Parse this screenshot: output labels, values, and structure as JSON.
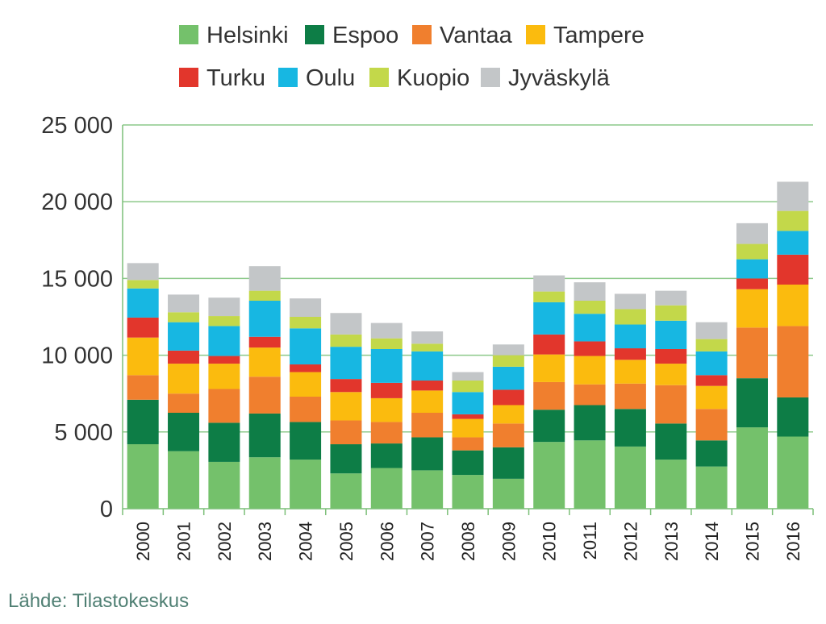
{
  "chart_data": {
    "type": "bar",
    "stacked": true,
    "title": "",
    "xlabel": "",
    "ylabel": "",
    "ylim": [
      0,
      25000
    ],
    "yticks": [
      0,
      5000,
      10000,
      15000,
      20000,
      25000
    ],
    "ytick_labels": [
      "0",
      "5 000",
      "10 000",
      "15 000",
      "20 000",
      "25 000"
    ],
    "grid": true,
    "legend_position": "top",
    "categories": [
      "2000",
      "2001",
      "2002",
      "2003",
      "2004",
      "2005",
      "2006",
      "2007",
      "2008",
      "2009",
      "2010",
      "2011",
      "2012",
      "2013",
      "2014",
      "2015",
      "2016"
    ],
    "series": [
      {
        "name": "Helsinki",
        "color": "#74c16b",
        "values": [
          4200,
          3750,
          3050,
          3350,
          3200,
          2300,
          2650,
          2500,
          2200,
          1950,
          4350,
          4450,
          4050,
          3200,
          2750,
          5300,
          4700
        ]
      },
      {
        "name": "Espoo",
        "color": "#0d7d46",
        "values": [
          2900,
          2500,
          2550,
          2850,
          2450,
          1900,
          1600,
          2150,
          1600,
          2050,
          2100,
          2300,
          2450,
          2350,
          1700,
          3200,
          2550
        ]
      },
      {
        "name": "Vantaa",
        "color": "#f07f2e",
        "values": [
          1600,
          1250,
          2200,
          2400,
          1650,
          1550,
          1400,
          1600,
          850,
          1550,
          1800,
          1350,
          1650,
          2500,
          2050,
          3300,
          4650
        ]
      },
      {
        "name": "Tampere",
        "color": "#fbbb0e",
        "values": [
          2450,
          1950,
          1650,
          1900,
          1600,
          1850,
          1550,
          1450,
          1200,
          1200,
          1800,
          1850,
          1550,
          1400,
          1500,
          2500,
          2700
        ]
      },
      {
        "name": "Turku",
        "color": "#e2362c",
        "values": [
          1300,
          850,
          500,
          700,
          500,
          850,
          1000,
          650,
          300,
          1000,
          1300,
          950,
          750,
          950,
          700,
          700,
          1950
        ]
      },
      {
        "name": "Oulu",
        "color": "#17b7e2",
        "values": [
          1900,
          1850,
          1950,
          2350,
          2350,
          2100,
          2200,
          1900,
          1450,
          1500,
          2100,
          1800,
          1550,
          1850,
          1550,
          1250,
          1550
        ]
      },
      {
        "name": "Kuopio",
        "color": "#c3d84a",
        "values": [
          550,
          650,
          650,
          650,
          750,
          800,
          700,
          500,
          750,
          750,
          700,
          850,
          1000,
          1000,
          800,
          1000,
          1300
        ]
      },
      {
        "name": "Jyväskylä",
        "color": "#c3c6c8",
        "values": [
          1100,
          1150,
          1200,
          1600,
          1200,
          1400,
          1000,
          800,
          550,
          700,
          1050,
          1200,
          1000,
          950,
          1100,
          1350,
          1900
        ]
      }
    ],
    "source": "Lähde: Tilastokeskus"
  }
}
